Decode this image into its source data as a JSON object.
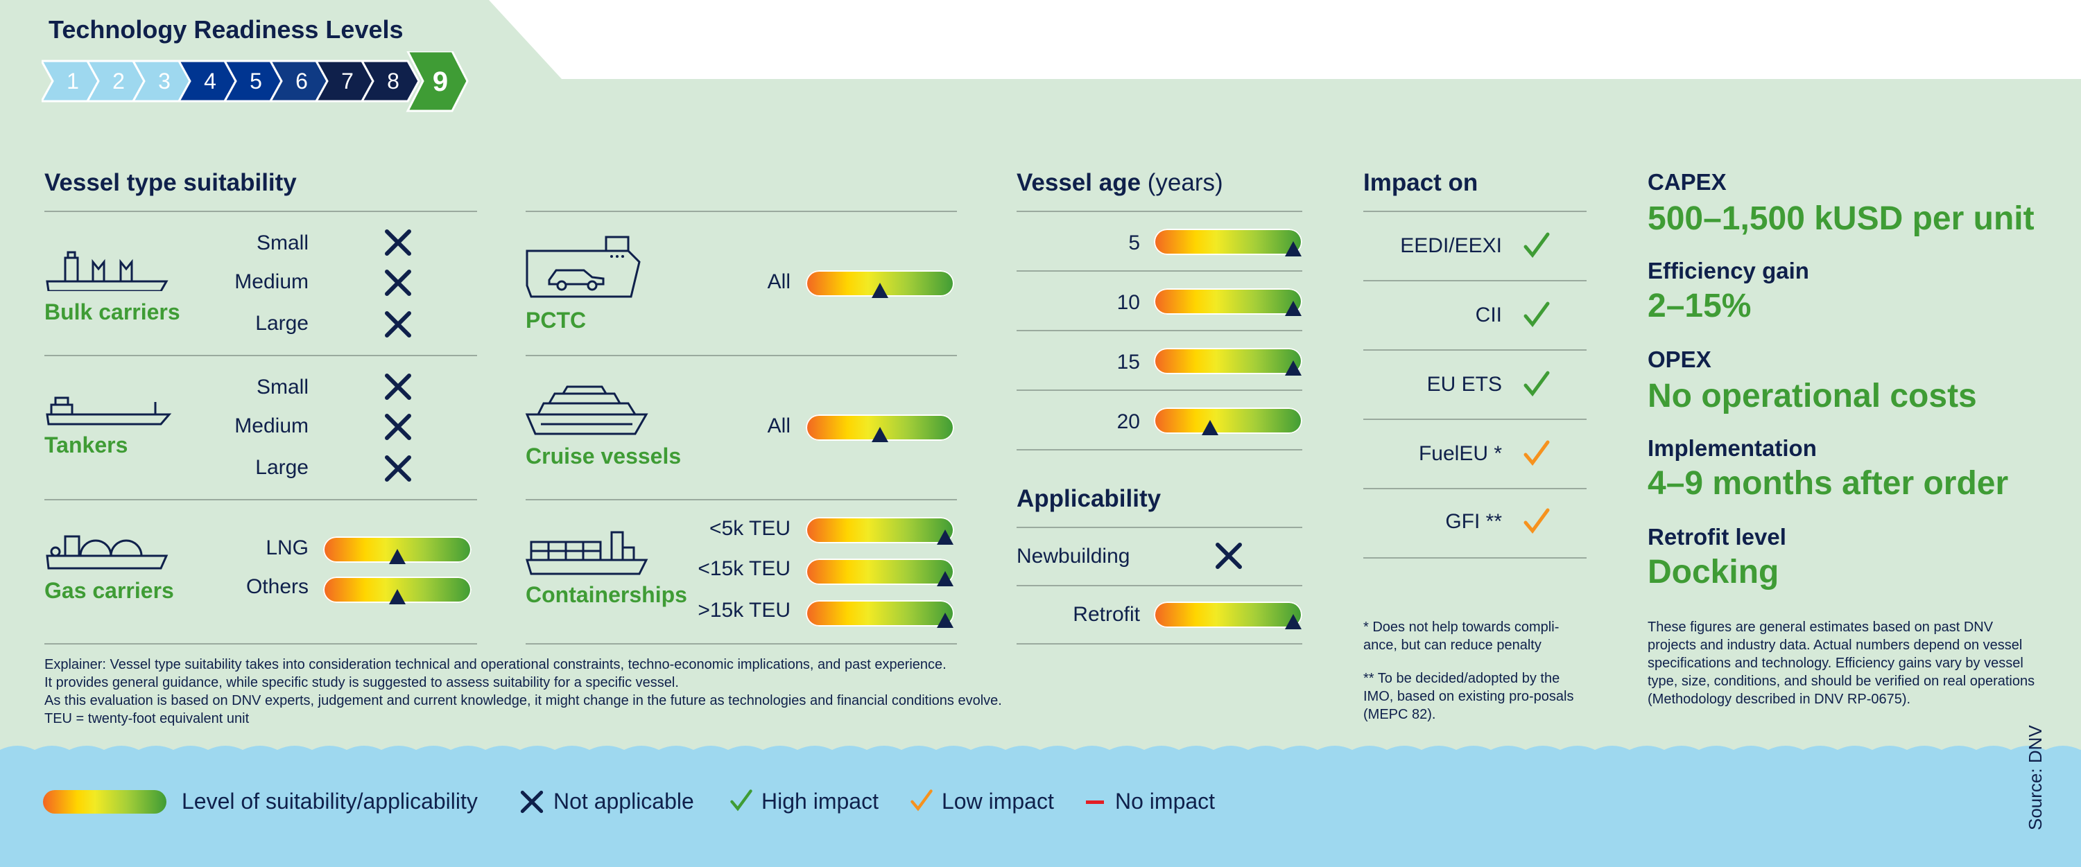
{
  "trl": {
    "title": "Technology Readiness Levels",
    "levels": [
      "1",
      "2",
      "3",
      "4",
      "5",
      "6",
      "7",
      "8",
      "9"
    ],
    "current": "9"
  },
  "vessel_type": {
    "heading": "Vessel type suitability",
    "bulk": {
      "name": "Bulk carriers",
      "rows": [
        "Small",
        "Medium",
        "Large"
      ]
    },
    "tankers": {
      "name": "Tankers",
      "rows": [
        "Small",
        "Medium",
        "Large"
      ]
    },
    "gas": {
      "name": "Gas carriers",
      "rows": [
        "LNG",
        "Others"
      ]
    },
    "pctc": {
      "name": "PCTC",
      "rows": [
        "All"
      ]
    },
    "cruise": {
      "name": "Cruise vessels",
      "rows": [
        "All"
      ]
    },
    "container": {
      "name": "Containerships",
      "rows": [
        "<5k TEU",
        "<15k TEU",
        ">15k TEU"
      ]
    }
  },
  "levels": {
    "gas_lng": 0.5,
    "gas_others": 0.5,
    "pctc_all": 0.5,
    "cruise_all": 0.5,
    "cont_5k": 0.94,
    "cont_15k": 0.94,
    "cont_gt15k": 0.94,
    "age_5": 0.94,
    "age_10": 0.94,
    "age_15": 0.94,
    "age_20": 0.38,
    "retrofit": 0.94
  },
  "vessel_age": {
    "heading": "Vessel age",
    "heading_unit": "(years)",
    "rows": [
      "5",
      "10",
      "15",
      "20"
    ]
  },
  "applicability": {
    "heading": "Applicability",
    "newbuilding": "Newbuilding",
    "retrofit": "Retrofit"
  },
  "impact": {
    "heading": "Impact on",
    "rows": [
      {
        "label": "EEDI/EEXI",
        "level": "high"
      },
      {
        "label": "CII",
        "level": "high"
      },
      {
        "label": "EU ETS",
        "level": "high"
      },
      {
        "label": "FuelEU *",
        "level": "low"
      },
      {
        "label": "GFI **",
        "level": "low"
      }
    ],
    "note1": "* Does not help towards compli-ance, but can reduce penalty",
    "note2": "** To be decided/adopted by the IMO, based on existing pro-posals (MEPC 82)."
  },
  "side": {
    "capex_h": "CAPEX",
    "capex_v": "500–1,500 kUSD per unit",
    "eff_h": "Efficiency gain",
    "eff_v": "2–15%",
    "opex_h": "OPEX",
    "opex_v": "No operational costs",
    "impl_h": "Implementation",
    "impl_v": "4–9 months after order",
    "retro_h": "Retrofit level",
    "retro_v": "Docking",
    "disclaimer": "These figures are general estimates based on past DNV projects and industry data. Actual numbers depend on vessel specifications and technology. Efficiency gains vary by vessel type, size, conditions, and should be verified on real operations (Methodology described in DNV RP-0675)."
  },
  "explainer": {
    "l1": "Explainer: Vessel type suitability takes into consideration technical and operational constraints, techno-economic implications, and past experience.",
    "l2": "It provides general guidance, while specific study is suggested to assess suitability for a specific vessel.",
    "l3": "As this evaluation is based on DNV experts, judgement and current knowledge, it might change in the future as technologies and financial conditions evolve.",
    "l4": "TEU = twenty-foot equivalent unit"
  },
  "legend": {
    "suit": "Level of suitability/applicability",
    "na": "Not applicable",
    "high": "High impact",
    "low": "Low impact",
    "none": "No impact"
  },
  "source": "Source: DNV",
  "colors": {
    "navy": "#0f204b",
    "green": "#3f9c35",
    "orange": "#f6921e",
    "red": "#e31e24",
    "bg": "#d6e9d8",
    "water": "#9ed8ef"
  }
}
